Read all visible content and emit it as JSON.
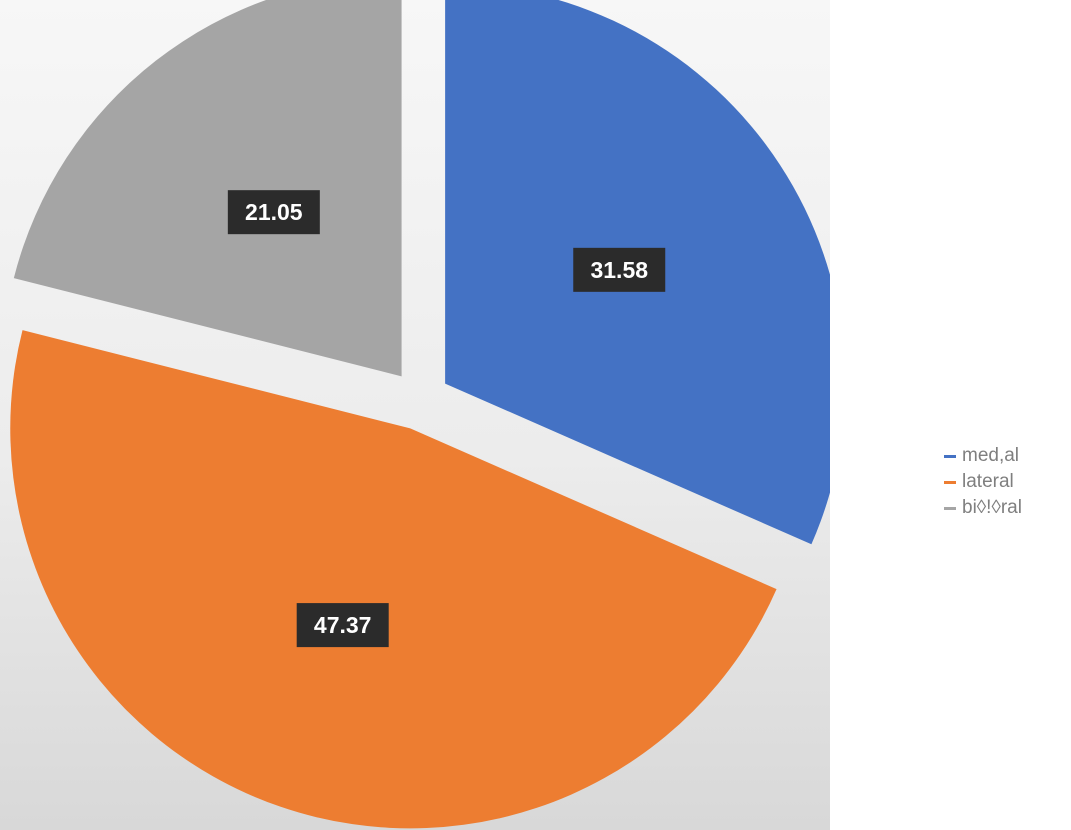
{
  "chart_data": {
    "type": "pie",
    "categories": [
      "med,al",
      "lateral",
      "bi◊!◊ral"
    ],
    "values": [
      31.58,
      47.37,
      21.05
    ],
    "value_labels": [
      "31.58",
      "47.37",
      "21.05"
    ],
    "colors": [
      "#4472c4",
      "#ed7d31",
      "#a5a5a5"
    ],
    "exploded": true,
    "start_angle_deg": 0,
    "direction": "clockwise",
    "legend_position": "right",
    "label_style": "white text on dark box"
  },
  "legend": {
    "items": [
      {
        "label": "med,al",
        "color": "#4472c4"
      },
      {
        "label": "lateral",
        "color": "#ed7d31"
      },
      {
        "label": "bi◊!◊ral",
        "color": "#a5a5a5"
      }
    ]
  }
}
